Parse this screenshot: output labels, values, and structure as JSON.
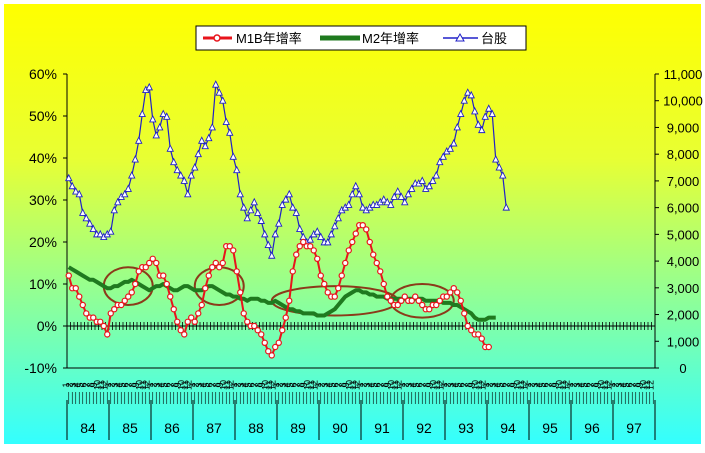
{
  "chart_data": {
    "type": "line",
    "legend_position": "top-center",
    "colors": {
      "m1b": "#e8141b",
      "m2": "#1f7a1f",
      "taiex": "#2020c8",
      "ellipse": "#8b3a1a",
      "bg_top": "#ffff00",
      "bg_bottom": "#33ffff"
    },
    "left_axis": {
      "ylim": [
        -10,
        60
      ],
      "ticks": [
        "-10%",
        "0%",
        "10%",
        "20%",
        "30%",
        "40%",
        "50%",
        "60%"
      ]
    },
    "right_axis": {
      "ylim": [
        0,
        11000
      ],
      "ticks": [
        "0",
        "1,000",
        "2,000",
        "3,000",
        "4,000",
        "5,000",
        "6,000",
        "7,000",
        "8,000",
        "9,000",
        "10,000",
        "11,000"
      ]
    },
    "year_labels": [
      "84",
      "85",
      "86",
      "87",
      "88",
      "89",
      "90",
      "91",
      "92",
      "93",
      "94",
      "95",
      "96",
      "97"
    ],
    "month_tick_labels": [
      "1",
      "2",
      "3",
      "4",
      "5",
      "6",
      "7",
      "8",
      "9",
      "10",
      "11",
      "12"
    ],
    "series": [
      {
        "name": "M1B年增率",
        "axis": "left",
        "marker": "circle",
        "values": [
          12,
          9,
          9,
          7,
          5,
          3,
          2,
          2,
          1,
          1,
          0,
          -2,
          3,
          4,
          5,
          5,
          6,
          7,
          8,
          10,
          13,
          14,
          14,
          15,
          16,
          15,
          12,
          12,
          10,
          7,
          4,
          1,
          -1,
          -2,
          1,
          2,
          1,
          3,
          5,
          9,
          12,
          14,
          15,
          14,
          15,
          19,
          19,
          18,
          13,
          8,
          3,
          1,
          0,
          0,
          -1,
          -2,
          -4,
          -6,
          -7,
          -5,
          -4,
          -1,
          2,
          6,
          13,
          17,
          19,
          20,
          19,
          19,
          18,
          16,
          12,
          10,
          8,
          7,
          7,
          9,
          12,
          15,
          18,
          20,
          22,
          24,
          24,
          23,
          20,
          17,
          15,
          13,
          10,
          7,
          6,
          5,
          5,
          6,
          7,
          6,
          6,
          7,
          6,
          5,
          4,
          4,
          5,
          5,
          6,
          7,
          7,
          8,
          9,
          8,
          6,
          3,
          0,
          -1,
          -2,
          -2,
          -3,
          -5,
          -5
        ],
        "x_start": 0
      },
      {
        "name": "M2年增率",
        "axis": "left",
        "values": [
          14,
          13.5,
          13,
          12.5,
          12,
          11.5,
          11,
          11,
          10.5,
          10,
          9.5,
          9,
          9,
          9.5,
          9.5,
          10,
          10.5,
          10.5,
          11,
          10.5,
          10,
          9.5,
          9,
          8.5,
          9,
          9.5,
          9.5,
          10,
          9.5,
          9,
          8.5,
          8.5,
          9,
          9.5,
          9.5,
          9,
          8.5,
          8.5,
          8.5,
          9,
          9.5,
          9.5,
          9,
          8.5,
          8,
          7.5,
          7.5,
          7,
          7,
          6.5,
          6.5,
          6,
          6.5,
          6.5,
          6.5,
          6,
          6,
          5.5,
          5.5,
          6,
          5.5,
          5,
          4.5,
          4,
          4,
          3.5,
          3.5,
          3,
          3,
          3,
          3,
          2.5,
          2.5,
          2.5,
          3,
          3.5,
          4,
          5,
          6,
          7,
          7.5,
          8,
          8.5,
          8.5,
          8,
          8,
          7.5,
          7.5,
          7,
          7,
          7,
          6.5,
          6.5,
          6.5,
          6.5,
          6.5,
          6.5,
          6.5,
          6.5,
          6.5,
          6.5,
          6.5,
          6,
          6,
          6,
          6,
          6,
          5.5,
          5.5,
          5.5,
          5,
          5,
          4.5,
          4,
          3.5,
          3,
          2,
          1.5,
          1.5,
          1.5,
          2,
          2,
          2
        ],
        "x_start": 0
      },
      {
        "name": "台股",
        "axis": "right",
        "marker": "triangle",
        "values": [
          7100,
          6800,
          6600,
          6500,
          5800,
          5600,
          5400,
          5200,
          5000,
          5000,
          4900,
          5000,
          5100,
          5900,
          6200,
          6400,
          6500,
          6700,
          7200,
          7800,
          8500,
          9500,
          10400,
          10500,
          9300,
          8700,
          9000,
          9500,
          9400,
          8200,
          7700,
          7400,
          7200,
          7000,
          6500,
          7200,
          7500,
          8000,
          8500,
          8300,
          8600,
          9000,
          10600,
          10300,
          10000,
          9200,
          8800,
          7900,
          7400,
          6500,
          6000,
          5600,
          5900,
          6200,
          5800,
          5500,
          5000,
          4600,
          4200,
          5000,
          5400,
          6100,
          6300,
          6500,
          6000,
          5800,
          5200,
          4900,
          4700,
          4800,
          5000,
          5100,
          4900,
          4700,
          4700,
          5000,
          5300,
          5600,
          5900,
          6000,
          6100,
          6500,
          6800,
          6500,
          6000,
          5900,
          6000,
          6100,
          6100,
          6200,
          6300,
          6200,
          6100,
          6400,
          6600,
          6400,
          6200,
          6500,
          6700,
          6900,
          6900,
          7000,
          6700,
          6800,
          7000,
          7200,
          7700,
          7900,
          8100,
          8200,
          8400,
          9000,
          9500,
          10000,
          10300,
          10200,
          9600,
          9100,
          8900,
          9400,
          9700,
          9500,
          7800,
          7500,
          7200,
          6000
        ],
        "x_start": 0
      }
    ],
    "annotations": [
      {
        "type": "ellipse",
        "cx_month": 17,
        "cy": 9.5,
        "rx_months": 7,
        "ry": 4.5
      },
      {
        "type": "ellipse",
        "cx_month": 43,
        "cy": 9.5,
        "rx_months": 7,
        "ry": 4.5
      },
      {
        "type": "ellipse",
        "cx_month": 76,
        "cy": 6,
        "rx_months": 18,
        "ry": 3.5
      },
      {
        "type": "ellipse",
        "cx_month": 101,
        "cy": 6,
        "rx_months": 9,
        "ry": 4
      }
    ]
  }
}
